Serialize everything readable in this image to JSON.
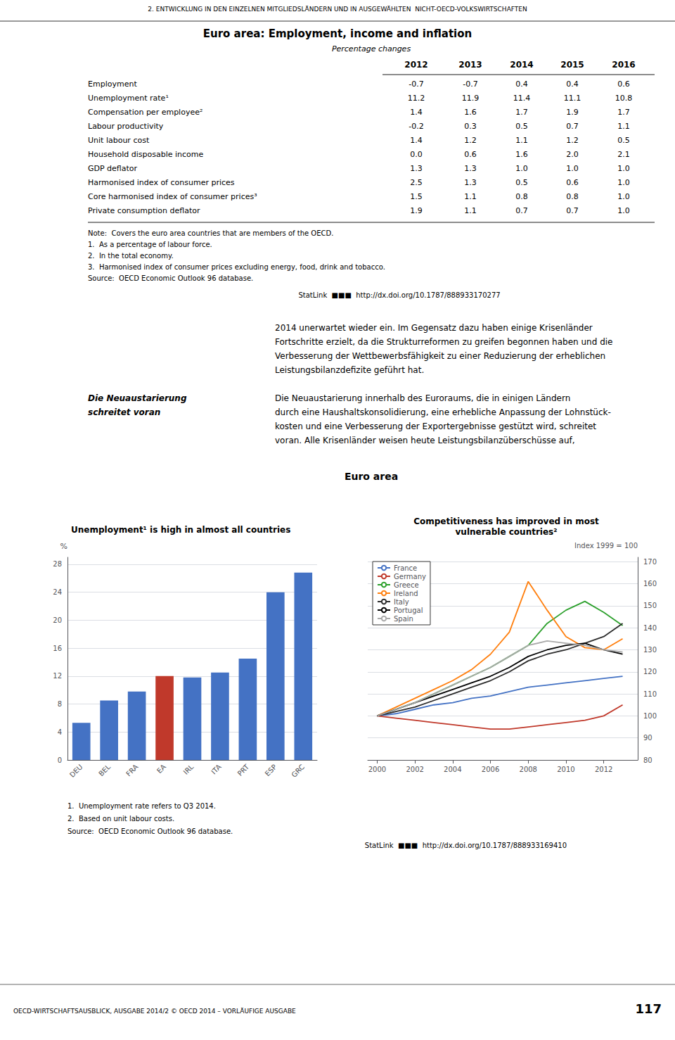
{
  "annotations": [
    "2. ENTWICKLUNG IN DEN EINZELNEN MITGLIEDSLÄNDERN UND IN AUSGEWÄHLTEN  NICHT-OECD-VOLKSWIRTSCHAFTEN",
    "2014 unerwartet wieder ein. Im Gegensatz dazu haben einige Krisenländer",
    "Fortschritte erzielt, da die Strukturreformen zu greifen begonnen haben und die",
    "Verbesserung der Wettbewerbsfähigkeit zu einer Reduzierung der erheblichen",
    "Leistungsbilanzdefizite geführt hat.",
    "Die Neuaustarierung",
    "schreitet voran",
    "Die Neuaustarierung innerhalb des Euroraums, die in einigen Ländern",
    "durch eine Haushaltskonsolidierung, eine erhebliche Anpassung der Lohnstück-",
    "kosten und eine Verbesserung der Exportergebnisse gestützt wird, schreitet",
    "voran. Alle Krisenländer weisen heute Leistungsbilanzüberschüsse auf,",
    "Euro area",
    "1.  Unemployment rate refers to Q3 2014.",
    "2.  Based on unit labour costs.",
    "Source:  OECD Economic Outlook 96 database.",
    "StatLink  ■■■  http://dx.doi.org/10.1787/888933169410",
    "OECD-WIRTSCHAFTSAUSBLICK, AUSGABE 2014/2 © OECD 2014 – VORLÄUFIGE AUSGABE",
    "117"
  ],
  "chart_data": [
    {
      "type": "table",
      "title": "Euro area: Employment, income and inflation",
      "subtitle": "Percentage changes",
      "categories": [
        "Employment",
        "Unemployment rate¹",
        "Compensation per employee²",
        "Labour productivity",
        "Unit labour cost",
        "Household disposable income",
        "GDP deflator",
        "Harmonised index of consumer prices",
        "Core harmonised index of consumer prices³",
        "Private consumption deflator"
      ],
      "series": [
        {
          "name": "2012",
          "values": [
            -0.7,
            11.2,
            1.4,
            -0.2,
            1.4,
            0,
            1.3,
            2.5,
            1.5,
            1.9
          ],
          "value_labels": [
            "-0.7",
            "11.2",
            "1.4",
            "-0.2",
            "1.4",
            "0.0",
            "1.3",
            "2.5",
            "1.5",
            "1.9"
          ]
        },
        {
          "name": "2013",
          "values": [
            -0.7,
            11.9,
            1.6,
            0.3,
            1.2,
            0.6,
            1.3,
            1.3,
            1.1,
            1.1
          ],
          "value_labels": [
            "-0.7",
            "11.9",
            "1.6",
            "0.3",
            "1.2",
            "0.6",
            "1.3",
            "1.3",
            "1.1",
            "1.1"
          ]
        },
        {
          "name": "2014",
          "values": [
            0.4,
            11.4,
            1.7,
            0.5,
            1.1,
            1.6,
            1,
            0.5,
            0.8,
            0.7
          ],
          "value_labels": [
            "0.4",
            "11.4",
            "1.7",
            "0.5",
            "1.1",
            "1.6",
            "1.0",
            "0.5",
            "0.8",
            "0.7"
          ]
        },
        {
          "name": "2015",
          "values": [
            0.4,
            11.1,
            1.9,
            0.7,
            1.2,
            2,
            1,
            0.6,
            0.8,
            0.7
          ],
          "value_labels": [
            "0.4",
            "11.1",
            "1.9",
            "0.7",
            "1.2",
            "2.0",
            "1.0",
            "0.6",
            "0.8",
            "0.7"
          ]
        },
        {
          "name": "2016",
          "values": [
            0.6,
            10.8,
            1.7,
            1.1,
            0.5,
            2.1,
            1,
            1,
            1,
            1
          ],
          "value_labels": [
            "0.6",
            "10.8",
            "1.7",
            "1.1",
            "0.5",
            "2.1",
            "1.0",
            "1.0",
            "1.0",
            "1.0"
          ]
        }
      ],
      "annotations": [
        "Note:  Covers the euro area countries that are members of the OECD.",
        "1.  As a percentage of labour force.",
        "2.  In the total economy.",
        "3.  Harmonised index of consumer prices excluding energy, food, drink and tobacco.",
        "Source:  OECD Economic Outlook 96 database.",
        "StatLink  ■■■  http://dx.doi.org/10.1787/888933170277"
      ]
    },
    {
      "type": "bar",
      "title": "Unemployment¹ is high in almost all countries",
      "categories": [
        "DEU",
        "BEL",
        "FRA",
        "EA",
        "IRL",
        "ITA",
        "PRT",
        "ESP",
        "GRC"
      ],
      "values": [
        5.3,
        8.5,
        9.8,
        12.0,
        11.8,
        12.5,
        14.5,
        24.0,
        26.8
      ],
      "colors": [
        "#4472C4",
        "#4472C4",
        "#4472C4",
        "#C0392B",
        "#4472C4",
        "#4472C4",
        "#4472C4",
        "#4472C4",
        "#4472C4"
      ],
      "ylabel": "%",
      "ylim": [
        0,
        29
      ],
      "yticks": [
        0,
        4,
        8,
        12,
        16,
        20,
        24,
        28
      ],
      "grid": true
    },
    {
      "type": "line",
      "title": "Competitiveness has improved in most\nvulnerable countries²",
      "ylabel": "Index 1999 = 100",
      "x": [
        2000,
        2001,
        2002,
        2003,
        2004,
        2005,
        2006,
        2007,
        2008,
        2009,
        2010,
        2011,
        2012,
        2013
      ],
      "series": [
        {
          "name": "France",
          "color": "#4472C4",
          "values": [
            100,
            101,
            103,
            105,
            106,
            108,
            109,
            111,
            113,
            114,
            115,
            116,
            117,
            118
          ]
        },
        {
          "name": "Germany",
          "color": "#C0392B",
          "values": [
            100,
            99,
            98,
            97,
            96,
            95,
            94,
            94,
            95,
            96,
            97,
            98,
            100,
            105
          ]
        },
        {
          "name": "Greece",
          "color": "#2CA02C",
          "values": [
            100,
            103,
            106,
            110,
            114,
            118,
            122,
            127,
            132,
            142,
            148,
            152,
            147,
            141
          ]
        },
        {
          "name": "Ireland",
          "color": "#FF7F0E",
          "values": [
            100,
            104,
            108,
            112,
            116,
            121,
            128,
            138,
            161,
            148,
            136,
            131,
            130,
            135
          ]
        },
        {
          "name": "Italy",
          "color": "#2C2C2C",
          "values": [
            100,
            102,
            104,
            107,
            110,
            113,
            116,
            120,
            125,
            128,
            130,
            133,
            136,
            142
          ]
        },
        {
          "name": "Portugal",
          "color": "#000000",
          "values": [
            100,
            103,
            106,
            109,
            112,
            115,
            118,
            122,
            127,
            130,
            132,
            133,
            130,
            128
          ]
        },
        {
          "name": "Spain",
          "color": "#AAAAAA",
          "values": [
            100,
            103,
            106,
            110,
            114,
            118,
            122,
            127,
            132,
            134,
            133,
            132,
            130,
            129
          ]
        }
      ],
      "xlim": [
        1999.5,
        2013.8
      ],
      "xticks": [
        2000,
        2002,
        2004,
        2006,
        2008,
        2010,
        2012
      ],
      "ylim": [
        80,
        172
      ],
      "yticks": [
        80,
        90,
        100,
        110,
        120,
        130,
        140,
        150,
        160,
        170
      ],
      "grid": true,
      "legend": "upper left"
    }
  ]
}
